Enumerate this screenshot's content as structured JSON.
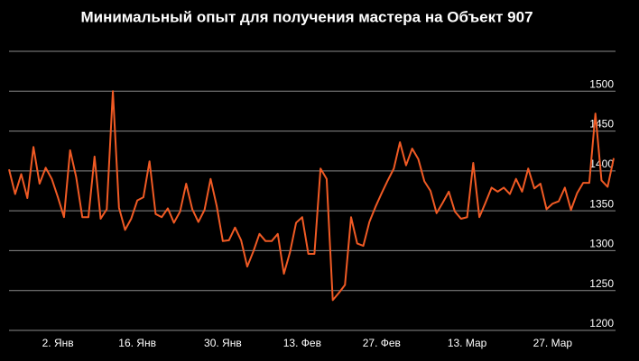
{
  "chart_data": {
    "type": "line",
    "title": "Минимальный опыт для получения мастера на Объект 907",
    "categories": [
      null,
      null,
      null,
      null,
      null,
      null,
      null,
      null,
      "2. Янв",
      null,
      null,
      null,
      null,
      null,
      null,
      null,
      null,
      null,
      null,
      null,
      null,
      "16. Янв",
      null,
      null,
      null,
      null,
      null,
      null,
      null,
      null,
      null,
      null,
      null,
      null,
      null,
      "30. Янв",
      null,
      null,
      null,
      null,
      null,
      null,
      null,
      null,
      null,
      null,
      null,
      null,
      "13. Фев",
      null,
      null,
      null,
      null,
      null,
      null,
      null,
      null,
      null,
      null,
      null,
      null,
      "27. Фев",
      null,
      null,
      null,
      null,
      null,
      null,
      null,
      null,
      null,
      null,
      null,
      null,
      null,
      "13. Мар",
      null,
      null,
      null,
      null,
      null,
      null,
      null,
      null,
      null,
      null,
      null,
      null,
      null,
      "27. Мар",
      null,
      null,
      null,
      null,
      null,
      null,
      null,
      null,
      null,
      null
    ],
    "series": [
      {
        "color": "#f05a24",
        "values": [
          1402,
          1371,
          1396,
          1366,
          1430,
          1384,
          1404,
          1390,
          1367,
          1342,
          1426,
          1392,
          1342,
          1342,
          1418,
          1340,
          1352,
          1500,
          1354,
          1326,
          1340,
          1363,
          1367,
          1412,
          1346,
          1342,
          1353,
          1335,
          1349,
          1384,
          1352,
          1336,
          1351,
          1390,
          1356,
          1312,
          1313,
          1329,
          1313,
          1280,
          1299,
          1321,
          1312,
          1312,
          1321,
          1271,
          1298,
          1335,
          1342,
          1296,
          1296,
          1403,
          1390,
          1238,
          1247,
          1257,
          1342,
          1309,
          1306,
          1336,
          1355,
          1372,
          1388,
          1403,
          1436,
          1407,
          1428,
          1415,
          1387,
          1375,
          1347,
          1360,
          1374,
          1349,
          1340,
          1342,
          1410,
          1342,
          1360,
          1379,
          1374,
          1379,
          1371,
          1390,
          1374,
          1403,
          1378,
          1384,
          1352,
          1359,
          1362,
          1379,
          1351,
          1372,
          1385,
          1385,
          1472,
          1388,
          1380,
          1416
        ]
      }
    ],
    "ylim": [
      1200,
      1550
    ],
    "yticks": [
      1200,
      1250,
      1300,
      1350,
      1400,
      1450,
      1500
    ],
    "grid": true
  }
}
